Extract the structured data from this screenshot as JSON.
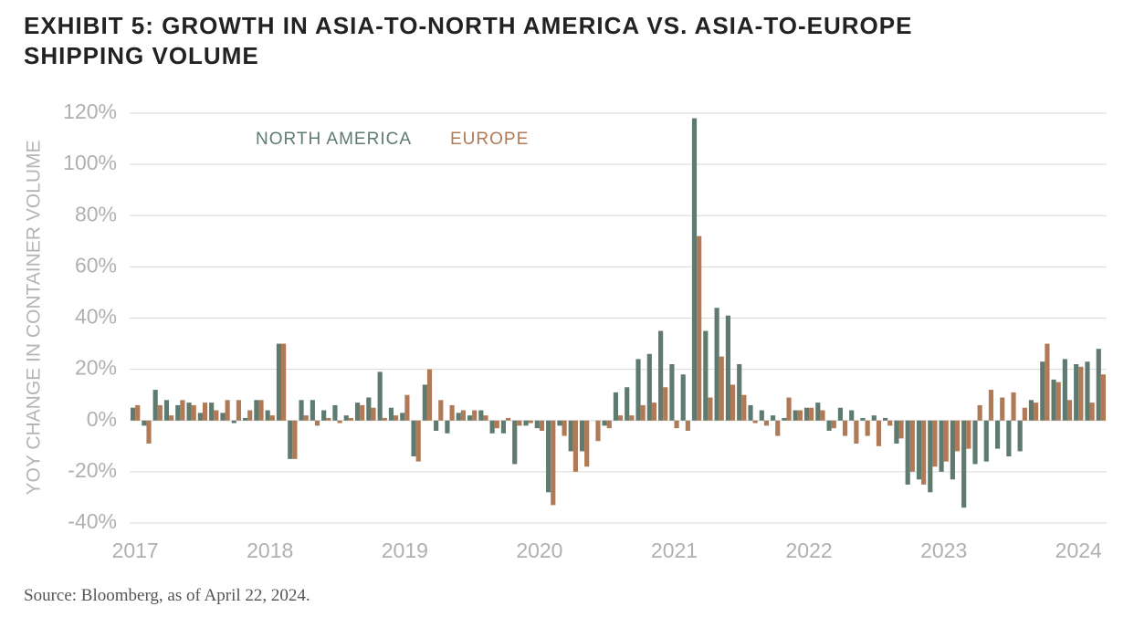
{
  "chart_data": {
    "type": "bar",
    "title": "EXHIBIT 5: GROWTH IN ASIA-TO-NORTH AMERICA VS. ASIA-TO-EUROPE SHIPPING VOLUME",
    "y_label": "YOY CHANGE IN CONTAINER VOLUME",
    "source": "Source: Bloomberg, as of April 22, 2024.",
    "categories": [
      "2017",
      null,
      null,
      null,
      null,
      null,
      null,
      null,
      null,
      null,
      null,
      null,
      "2018",
      null,
      null,
      null,
      null,
      null,
      null,
      null,
      null,
      null,
      null,
      null,
      "2019",
      null,
      null,
      null,
      null,
      null,
      null,
      null,
      null,
      null,
      null,
      null,
      "2020",
      null,
      null,
      null,
      null,
      null,
      null,
      null,
      null,
      null,
      null,
      null,
      "2021",
      null,
      null,
      null,
      null,
      null,
      null,
      null,
      null,
      null,
      null,
      null,
      "2022",
      null,
      null,
      null,
      null,
      null,
      null,
      null,
      null,
      null,
      null,
      null,
      "2023",
      null,
      null,
      null,
      null,
      null,
      null,
      null,
      null,
      null,
      null,
      null,
      "2024",
      null,
      null
    ],
    "series": [
      {
        "name": "NORTH AMERICA",
        "color": "#5f7a6f",
        "values": [
          5,
          -2,
          12,
          8,
          6,
          7,
          3,
          7,
          3,
          -1,
          1,
          8,
          4,
          30,
          -15,
          8,
          8,
          4,
          6,
          2,
          7,
          9,
          19,
          5,
          3,
          -14,
          14,
          -4,
          -5,
          3,
          2,
          4,
          -5,
          -5,
          -17,
          -2,
          -3,
          -28,
          -2,
          -12,
          -12,
          0,
          -2,
          11,
          13,
          24,
          26,
          35,
          22,
          18,
          118,
          35,
          44,
          41,
          22,
          6,
          4,
          2,
          1,
          4,
          5,
          7,
          -4,
          5,
          4,
          1,
          2,
          1,
          -9,
          -25,
          -23,
          -28,
          -20,
          -23,
          -34,
          -17,
          -16,
          -11,
          -14,
          -12,
          8,
          23,
          16,
          24,
          22,
          23,
          28
        ]
      },
      {
        "name": "EUROPE",
        "color": "#b07a56",
        "values": [
          6,
          -9,
          6,
          2,
          8,
          6,
          7,
          4,
          8,
          8,
          4,
          8,
          2,
          30,
          -15,
          2,
          -2,
          1,
          -1,
          1,
          6,
          5,
          1,
          2,
          10,
          -16,
          20,
          8,
          6,
          4,
          4,
          2,
          -3,
          1,
          -2,
          -1,
          -4,
          -33,
          -6,
          -20,
          -18,
          -8,
          -3,
          2,
          2,
          6,
          7,
          13,
          -3,
          -4,
          72,
          9,
          25,
          14,
          10,
          -1,
          -2,
          -6,
          9,
          4,
          5,
          4,
          -3,
          -6,
          -9,
          -6,
          -10,
          -2,
          -7,
          -20,
          -25,
          -18,
          -16,
          -12,
          -11,
          6,
          12,
          9,
          11,
          5,
          7,
          30,
          15,
          8,
          21,
          7,
          18
        ]
      }
    ],
    "ylim": [
      -40,
      120
    ],
    "yticks": [
      {
        "value": -40,
        "label": "-40%"
      },
      {
        "value": -20,
        "label": "-20%"
      },
      {
        "value": 0,
        "label": "0%"
      },
      {
        "value": 20,
        "label": "20%"
      },
      {
        "value": 40,
        "label": "40%"
      },
      {
        "value": 60,
        "label": "60%"
      },
      {
        "value": 80,
        "label": "80%"
      },
      {
        "value": 100,
        "label": "100%"
      },
      {
        "value": 120,
        "label": "120%"
      }
    ],
    "grid": true
  }
}
